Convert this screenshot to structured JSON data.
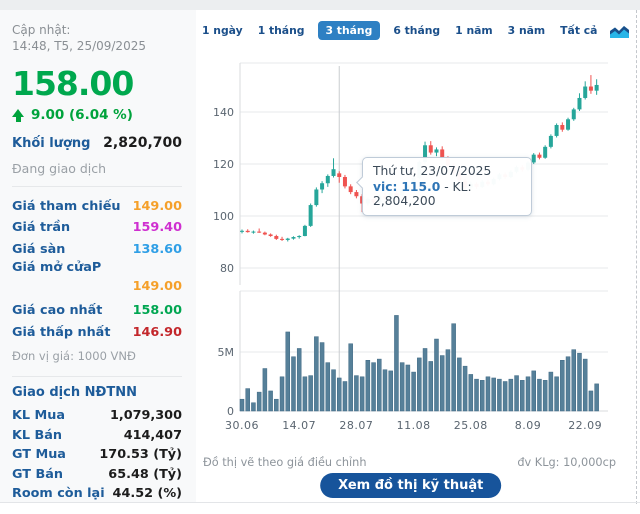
{
  "sidebar": {
    "updated_label": "Cập nhật:",
    "updated_time": "14:48, T5, 25/09/2025",
    "price": "158.00",
    "change": "9.00 (6.04 %)",
    "volume_label": "Khối lượng",
    "volume_value": "2,820,700",
    "session_status": "Đang giao dịch",
    "price_rows": [
      {
        "label": "Giá tham chiếu",
        "value": "149.00",
        "color": "#f5a02a",
        "wrap": false
      },
      {
        "label": "Giá trần",
        "value": "159.40",
        "color": "#cf2fd0",
        "wrap": false
      },
      {
        "label": "Giá sàn",
        "value": "138.60",
        "color": "#2f9fe6",
        "wrap": false
      },
      {
        "label": "Giá mở cửaP",
        "value": "149.00",
        "color": "#f5a02a",
        "wrap": true
      },
      {
        "label": "Giá cao nhất",
        "value": "158.00",
        "color": "#00a651",
        "wrap": false
      },
      {
        "label": "Giá thấp nhất",
        "value": "146.90",
        "color": "#c3272b",
        "wrap": false
      }
    ],
    "unit_note": "Đơn vị giá: 1000 VNĐ",
    "foreign_header": "Giao dịch NĐTNN",
    "foreign_rows": [
      {
        "label": "KL Mua",
        "value": "1,079,300"
      },
      {
        "label": "KL Bán",
        "value": "414,407"
      },
      {
        "label": "GT Mua",
        "value": "170.53 (Tỷ)"
      },
      {
        "label": "GT Bán",
        "value": "65.48 (Tỷ)"
      },
      {
        "label": "Room còn lại",
        "value": "44.52 (%)"
      }
    ]
  },
  "tabs": {
    "items": [
      "1 ngày",
      "1 tháng",
      "3 tháng",
      "6 tháng",
      "1 năm",
      "3 năm",
      "Tất cả"
    ],
    "active": "3 tháng",
    "icon": "area-chart-icon",
    "active_bg": "#2e80c3",
    "text_color": "#1b4f8a"
  },
  "tooltip": {
    "date": "Thứ tư, 23/07/2025",
    "symbol": "vic:",
    "value": "115.0",
    "rest": "- KL: 2,804,200"
  },
  "footer": {
    "note_left": "Đồ thị vẽ theo giá điều chỉnh",
    "note_right": "đv KLg: 10,000cp",
    "button_label": "Xem đồ thị kỹ thuật"
  },
  "chart_data": {
    "type": "candlestick+volume",
    "symbol": "vic",
    "title": "",
    "price_axis": {
      "ticks": [
        140,
        120,
        100,
        80
      ],
      "ylim": [
        73,
        157
      ]
    },
    "volume_axis": {
      "ticks": [
        "5M",
        "0"
      ],
      "ylim_millions": [
        0,
        9.8
      ]
    },
    "x_labels": [
      "30.06",
      "14.07",
      "28.07",
      "11.08",
      "25.08",
      "8.09",
      "22.09"
    ],
    "x_label_indices": [
      0,
      10,
      20,
      30,
      40,
      50,
      60
    ],
    "crosshair_index": 17,
    "colors": {
      "up": "#26a69a",
      "down": "#ef5350",
      "volume_fill": "#568099",
      "volume_stroke": "#3e6883",
      "grid": "#e7e9eb",
      "axis": "#d8dbde",
      "crosshair": "#c9ccd0",
      "tick_text": "#5a6570"
    },
    "candles_ohlc": [
      [
        94.0,
        94.8,
        93.3,
        94.3
      ],
      [
        94.3,
        94.9,
        93.6,
        93.8
      ],
      [
        93.8,
        94.4,
        93.2,
        94.0
      ],
      [
        94.0,
        95.2,
        93.5,
        93.6
      ],
      [
        93.6,
        94.0,
        92.6,
        92.9
      ],
      [
        92.9,
        93.3,
        92.0,
        92.3
      ],
      [
        92.3,
        92.8,
        90.8,
        91.2
      ],
      [
        91.2,
        92.0,
        90.4,
        90.8
      ],
      [
        90.8,
        91.6,
        90.2,
        91.3
      ],
      [
        91.3,
        92.2,
        90.9,
        91.9
      ],
      [
        91.9,
        92.6,
        91.3,
        92.3
      ],
      [
        92.3,
        96.6,
        92.2,
        96.2
      ],
      [
        96.2,
        104.8,
        95.8,
        104.2
      ],
      [
        104.2,
        111.0,
        103.6,
        110.2
      ],
      [
        110.2,
        113.4,
        108.8,
        112.6
      ],
      [
        112.6,
        116.0,
        111.2,
        115.4
      ],
      [
        115.4,
        122.2,
        114.8,
        118.0
      ],
      [
        116.4,
        117.2,
        112.8,
        115.0
      ],
      [
        115.0,
        115.8,
        110.6,
        111.4
      ],
      [
        111.4,
        112.2,
        108.4,
        109.2
      ],
      [
        109.2,
        110.0,
        106.8,
        107.6
      ],
      [
        107.6,
        108.4,
        101.5,
        104.8
      ],
      [
        104.8,
        107.2,
        104.0,
        106.6
      ],
      [
        106.6,
        107.4,
        104.6,
        105.2
      ],
      [
        105.2,
        108.2,
        104.8,
        107.6
      ],
      [
        107.6,
        108.8,
        106.2,
        106.8
      ],
      [
        106.8,
        109.4,
        106.4,
        108.8
      ],
      [
        108.8,
        110.2,
        107.0,
        107.8
      ],
      [
        107.8,
        110.6,
        107.4,
        110.0
      ],
      [
        110.0,
        112.4,
        109.4,
        111.8
      ],
      [
        111.8,
        115.2,
        111.2,
        114.6
      ],
      [
        114.6,
        121.4,
        114.0,
        120.8
      ],
      [
        120.8,
        128.6,
        120.2,
        127.2
      ],
      [
        127.2,
        128.8,
        123.6,
        124.4
      ],
      [
        124.4,
        126.4,
        123.0,
        125.6
      ],
      [
        125.6,
        126.8,
        121.4,
        122.2
      ],
      [
        122.2,
        123.0,
        118.6,
        119.4
      ],
      [
        119.4,
        120.2,
        115.8,
        116.6
      ],
      [
        116.6,
        117.4,
        112.8,
        113.6
      ],
      [
        113.6,
        114.4,
        109.6,
        111.0
      ],
      [
        111.0,
        113.2,
        110.2,
        112.4
      ],
      [
        112.4,
        113.0,
        110.4,
        111.2
      ],
      [
        111.2,
        113.8,
        110.8,
        113.2
      ],
      [
        113.2,
        114.0,
        111.6,
        112.2
      ],
      [
        112.2,
        114.8,
        111.8,
        114.2
      ],
      [
        114.2,
        116.6,
        113.6,
        116.0
      ],
      [
        116.0,
        116.8,
        114.2,
        115.0
      ],
      [
        115.0,
        117.6,
        114.6,
        117.0
      ],
      [
        117.0,
        119.4,
        116.4,
        118.8
      ],
      [
        118.8,
        119.6,
        117.0,
        117.8
      ],
      [
        117.8,
        121.2,
        117.2,
        120.6
      ],
      [
        120.6,
        124.2,
        120.0,
        123.6
      ],
      [
        123.6,
        124.4,
        121.8,
        122.4
      ],
      [
        122.4,
        127.2,
        122.0,
        126.6
      ],
      [
        126.6,
        131.4,
        126.0,
        130.8
      ],
      [
        130.8,
        135.6,
        130.2,
        135.0
      ],
      [
        135.0,
        136.0,
        132.4,
        133.2
      ],
      [
        133.2,
        137.8,
        132.8,
        137.2
      ],
      [
        137.2,
        141.6,
        136.6,
        141.0
      ],
      [
        141.0,
        147.2,
        140.4,
        145.4
      ],
      [
        145.4,
        151.8,
        144.8,
        149.8
      ],
      [
        149.8,
        154.2,
        147.0,
        148.2
      ],
      [
        148.2,
        152.6,
        146.6,
        150.4
      ]
    ],
    "volumes_millions": [
      1.0,
      1.9,
      0.7,
      1.6,
      3.6,
      1.7,
      1.0,
      2.9,
      6.7,
      4.6,
      5.3,
      2.9,
      3.0,
      6.3,
      5.8,
      4.1,
      3.5,
      2.8,
      2.5,
      5.7,
      3.0,
      2.9,
      4.3,
      4.1,
      4.4,
      3.5,
      3.4,
      8.1,
      4.1,
      3.9,
      3.3,
      4.5,
      5.3,
      4.2,
      6.1,
      4.7,
      5.2,
      7.4,
      4.5,
      3.8,
      3.1,
      2.7,
      2.6,
      2.9,
      2.8,
      2.7,
      2.5,
      2.7,
      3.0,
      2.6,
      2.9,
      3.4,
      2.7,
      2.6,
      3.3,
      2.9,
      4.3,
      4.6,
      5.2,
      4.9,
      4.4,
      1.7,
      2.3
    ]
  }
}
